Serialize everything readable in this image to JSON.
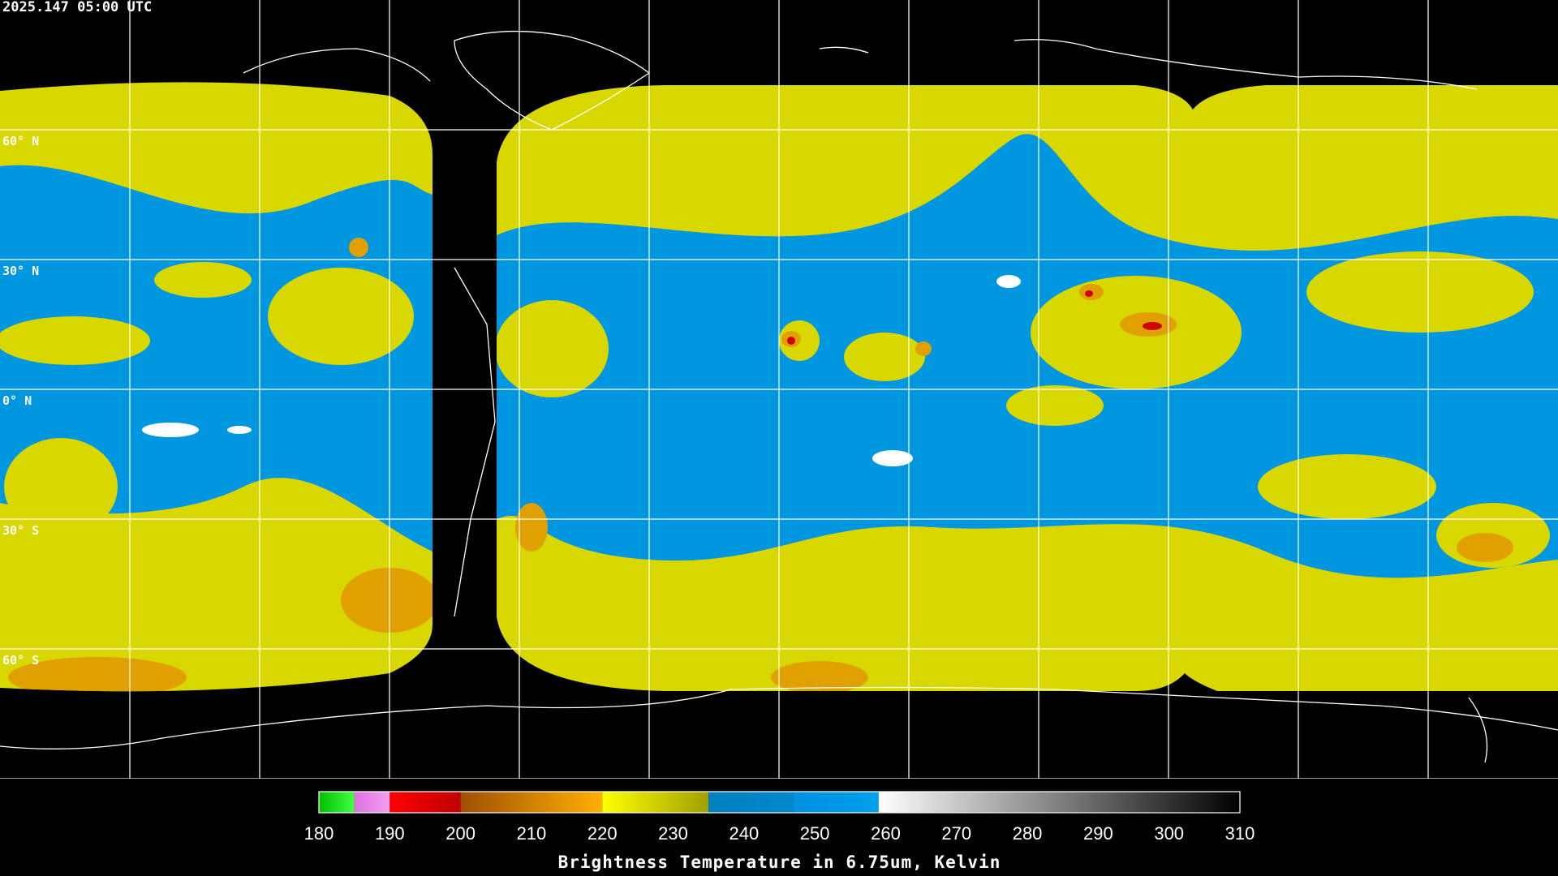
{
  "header": {
    "timestamp": "2025.147 05:00 UTC"
  },
  "map": {
    "lat_labels": [
      "60° N",
      "30° N",
      "0° N",
      "30° S",
      "60° S"
    ]
  },
  "colorbar": {
    "title": "Brightness Temperature in 6.75um, Kelvin",
    "range": [
      180,
      310
    ],
    "ticks": [
      180,
      190,
      200,
      210,
      220,
      230,
      240,
      250,
      260,
      270,
      280,
      290,
      300,
      310
    ],
    "segments": [
      {
        "from": 180,
        "to": 185,
        "colors": [
          "#00c000",
          "#40ff40"
        ]
      },
      {
        "from": 185,
        "to": 190,
        "colors": [
          "#e070e0",
          "#f0a0f0"
        ]
      },
      {
        "from": 190,
        "to": 200,
        "colors": [
          "#ff0000",
          "#c00000"
        ]
      },
      {
        "from": 200,
        "to": 220,
        "colors": [
          "#a05000",
          "#ffb000"
        ]
      },
      {
        "from": 220,
        "to": 235,
        "colors": [
          "#ffff00",
          "#a0a000"
        ]
      },
      {
        "from": 235,
        "to": 247,
        "colors": [
          "#0080c0",
          "#0088cc"
        ]
      },
      {
        "from": 247,
        "to": 259,
        "colors": [
          "#0090e0",
          "#00a0f0"
        ]
      },
      {
        "from": 259,
        "to": 310,
        "colors": [
          "#ffffff",
          "#000000"
        ]
      }
    ]
  }
}
